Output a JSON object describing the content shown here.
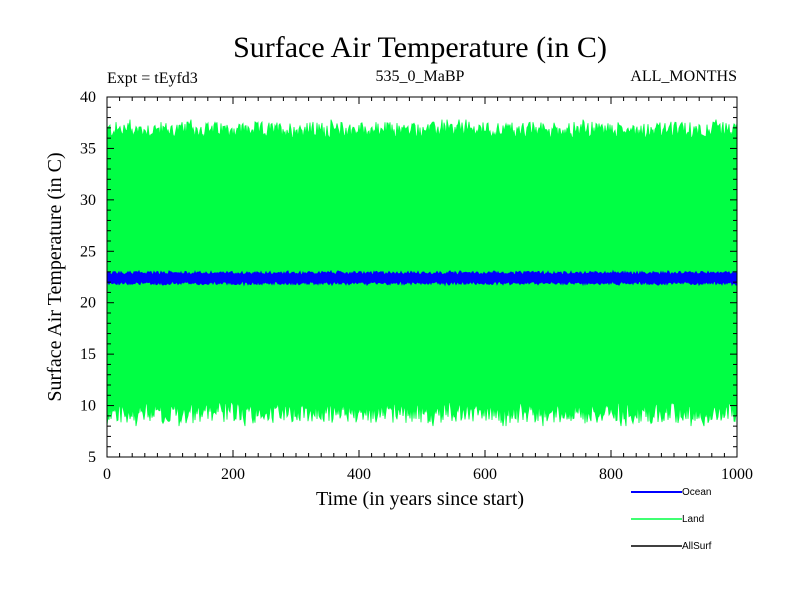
{
  "chart_data": {
    "type": "line",
    "title": "Surface Air Temperature (in C)",
    "subtitle_left": "Expt = tEyfd3",
    "subtitle_center": "535_0_MaBP",
    "subtitle_right": "ALL_MONTHS",
    "xlabel": "Time (in years since start)",
    "ylabel": "Surface Air Temperature (in C)",
    "xlim": [
      0,
      1000
    ],
    "ylim": [
      5,
      40
    ],
    "x_ticks": [
      0,
      200,
      400,
      600,
      800,
      1000
    ],
    "y_ticks": [
      5,
      10,
      15,
      20,
      25,
      30,
      35,
      40
    ],
    "x_tick_labels": [
      "0",
      "200",
      "400",
      "600",
      "800",
      "1000"
    ],
    "y_tick_labels": [
      "5",
      "10",
      "15",
      "20",
      "25",
      "30",
      "35",
      "40"
    ],
    "series": [
      {
        "name": "Land",
        "color": "#00ff44",
        "min_envelope": 9.3,
        "max_envelope": 36.8,
        "extreme_low": 8.0,
        "extreme_high": 37.8,
        "description_mean": 22.8
      },
      {
        "name": "Ocean",
        "color": "#0000ff",
        "min_envelope": 21.9,
        "max_envelope": 22.9,
        "extreme_low": 21.7,
        "extreme_high": 23.1,
        "description_mean": 22.4
      },
      {
        "name": "AllSurf",
        "color": "#000000",
        "min_envelope": null,
        "max_envelope": null
      }
    ],
    "legend": [
      {
        "label": "Ocean",
        "color": "#0000ff"
      },
      {
        "label": "Land",
        "color": "#00ff44"
      },
      {
        "label": "AllSurf",
        "color": "#000000"
      }
    ],
    "legend_position": "bottom-right"
  }
}
